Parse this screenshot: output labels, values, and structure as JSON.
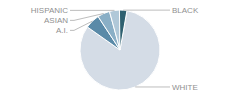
{
  "chart_data": {
    "type": "pie",
    "categories": [
      "WHITE",
      "A.I.",
      "ASIAN",
      "HISPANIC",
      "BLACK"
    ],
    "values": [
      82,
      6,
      5,
      4,
      3
    ],
    "colors": [
      "#d4dce6",
      "#5a8aa8",
      "#8aafc6",
      "#b0c8d8",
      "#2e6070"
    ]
  }
}
